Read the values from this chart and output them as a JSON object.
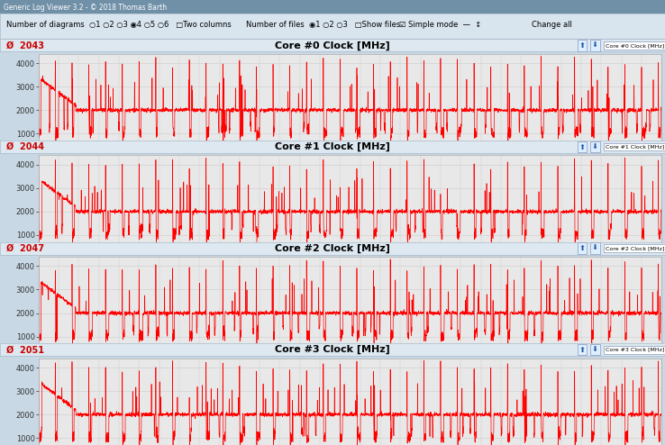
{
  "cores": [
    {
      "label": "2043",
      "title": "Core #0 Clock [MHz]",
      "legend": "Core #0 Clock [MHz]"
    },
    {
      "label": "2044",
      "title": "Core #1 Clock [MHz]",
      "legend": "Core #1 Clock [MHz]"
    },
    {
      "label": "2047",
      "title": "Core #2 Clock [MHz]",
      "legend": "Core #2 Clock [MHz]"
    },
    {
      "label": "2051",
      "title": "Core #3 Clock [MHz]",
      "legend": "Core #3 Clock [MHz]"
    }
  ],
  "ylim": [
    700,
    4400
  ],
  "yticks": [
    1000,
    2000,
    3000,
    4000
  ],
  "total_seconds": 3720,
  "line_color": "#ff0000",
  "line_width": 0.5,
  "plot_bg": "#e8e8e8",
  "panel_header_bg": "#dde8f0",
  "fig_bg": "#c8d8e4",
  "outer_bg": "#b8ccd8",
  "label_color": "#cc0000",
  "title_color": "#000000",
  "tick_label_color": "#333333",
  "grid_color": "#cccccc",
  "seed": 42,
  "window_title": "Generic Log Viewer 3.2 - © 2018 Thomas Barth",
  "toolbar_text1": "Number of diagrams",
  "toolbar_text2": "Number of files",
  "toolbar_bg": "#d8e4ee"
}
